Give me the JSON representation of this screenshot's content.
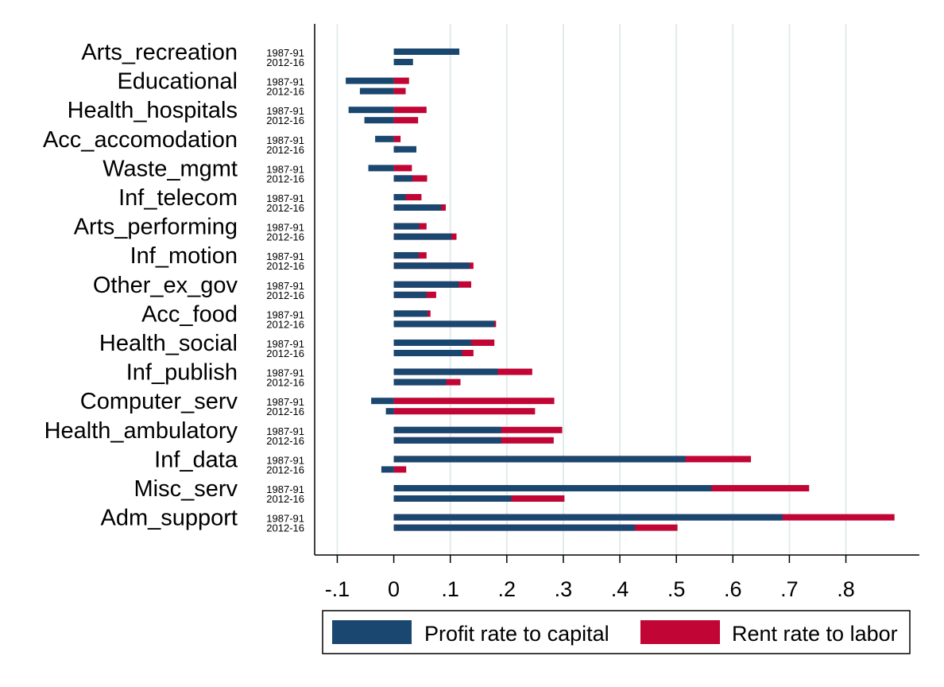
{
  "chart_data": {
    "type": "bar",
    "orientation": "horizontal",
    "stacked": true,
    "categories": [
      "Arts_recreation",
      "Educational",
      "Health_hospitals",
      "Acc_accomodation",
      "Waste_mgmt",
      "Inf_telecom",
      "Arts_performing",
      "Inf_motion",
      "Other_ex_gov",
      "Acc_food",
      "Health_social",
      "Inf_publish",
      "Computer_serv",
      "Health_ambulatory",
      "Inf_data",
      "Misc_serv",
      "Adm_support"
    ],
    "periods": [
      "1987-91",
      "2012-16"
    ],
    "series": [
      {
        "name": "Profit rate to capital",
        "color": "#1a476f",
        "values": [
          [
            0.116,
            0.034
          ],
          [
            -0.085,
            -0.06
          ],
          [
            -0.08,
            -0.052
          ],
          [
            -0.033,
            0.04
          ],
          [
            -0.045,
            0.033
          ],
          [
            0.021,
            0.084
          ],
          [
            0.045,
            0.102
          ],
          [
            0.044,
            0.134
          ],
          [
            0.115,
            0.058
          ],
          [
            0.06,
            0.178
          ],
          [
            0.137,
            0.121
          ],
          [
            0.184,
            0.093
          ],
          [
            -0.04,
            -0.014
          ],
          [
            0.19,
            0.19
          ],
          [
            0.516,
            -0.022
          ],
          [
            0.562,
            0.208
          ],
          [
            0.688,
            0.427
          ]
        ]
      },
      {
        "name": "Rent rate to labor",
        "color": "#c10534",
        "values": [
          [
            0.0,
            0.0
          ],
          [
            0.027,
            0.021
          ],
          [
            0.058,
            0.043
          ],
          [
            0.012,
            0.008
          ],
          [
            0.032,
            0.059
          ],
          [
            0.049,
            0.092
          ],
          [
            0.058,
            0.111
          ],
          [
            0.058,
            0.141
          ],
          [
            0.137,
            0.075
          ],
          [
            0.065,
            0.181
          ],
          [
            0.178,
            0.141
          ],
          [
            0.245,
            0.118
          ],
          [
            0.284,
            0.25
          ],
          [
            0.298,
            0.283
          ],
          [
            0.632,
            0.022
          ],
          [
            0.735,
            0.302
          ],
          [
            0.886,
            0.502
          ]
        ]
      }
    ],
    "x_ticks": [
      -0.1,
      0,
      0.1,
      0.2,
      0.3,
      0.4,
      0.5,
      0.6,
      0.7,
      0.8
    ],
    "x_tick_labels": [
      "-.1",
      "0",
      ".1",
      ".2",
      ".3",
      ".4",
      ".5",
      ".6",
      ".7",
      ".8"
    ],
    "xlim": [
      -0.14,
      0.93
    ],
    "grid": "vertical",
    "legend": {
      "position": "bottom",
      "items": [
        "Profit rate to capital",
        "Rent rate to labor"
      ]
    },
    "title": "",
    "xlabel": "",
    "ylabel": ""
  }
}
